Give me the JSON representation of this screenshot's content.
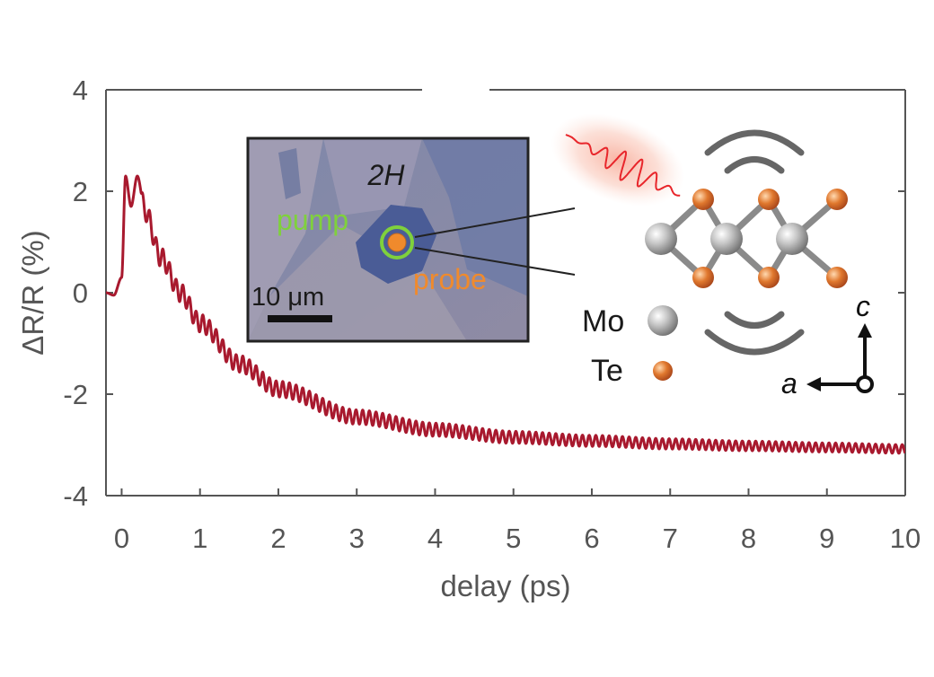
{
  "chart_data": {
    "type": "line",
    "xlabel": "delay (ps)",
    "ylabel": "ΔR/R (%)",
    "xlim": [
      -0.2,
      10
    ],
    "ylim": [
      -4,
      4
    ],
    "xticks": [
      0,
      1,
      2,
      3,
      4,
      5,
      6,
      7,
      8,
      9,
      10
    ],
    "yticks": [
      4,
      2,
      0,
      -2,
      -4
    ],
    "grid": false,
    "series": [
      {
        "color": "#a8192e",
        "x": [
          -0.2,
          -0.1,
          0.0,
          0.05,
          0.12,
          0.2,
          0.3,
          0.5,
          0.75,
          1.0,
          1.5,
          2.0,
          3.0,
          4.0,
          5.0,
          6.0,
          7.0,
          8.0,
          9.0,
          10.0
        ],
        "y": [
          0.0,
          -0.05,
          0.3,
          2.3,
          1.7,
          2.3,
          1.6,
          0.7,
          0.0,
          -0.6,
          -1.4,
          -1.9,
          -2.45,
          -2.7,
          -2.85,
          -2.92,
          -2.98,
          -3.02,
          -3.05,
          -3.08
        ],
        "oscillation_period_ps": 0.085
      }
    ],
    "annotations": {
      "phase": "2H",
      "pump": "pump",
      "probe": "probe",
      "scale_bar": "10 μm",
      "legend_mo": "Mo",
      "legend_te": "Te",
      "axis_c": "c",
      "axis_a": "a"
    }
  },
  "colors": {
    "curve": "#a8192e",
    "axes": "#555555",
    "pump": "#7fd13c",
    "probe": "#f08a2c",
    "mo_atom": "#b3b3b3",
    "te_atom": "#d86a2a",
    "bond": "#8a8a8a",
    "laser": "#e8262b"
  }
}
